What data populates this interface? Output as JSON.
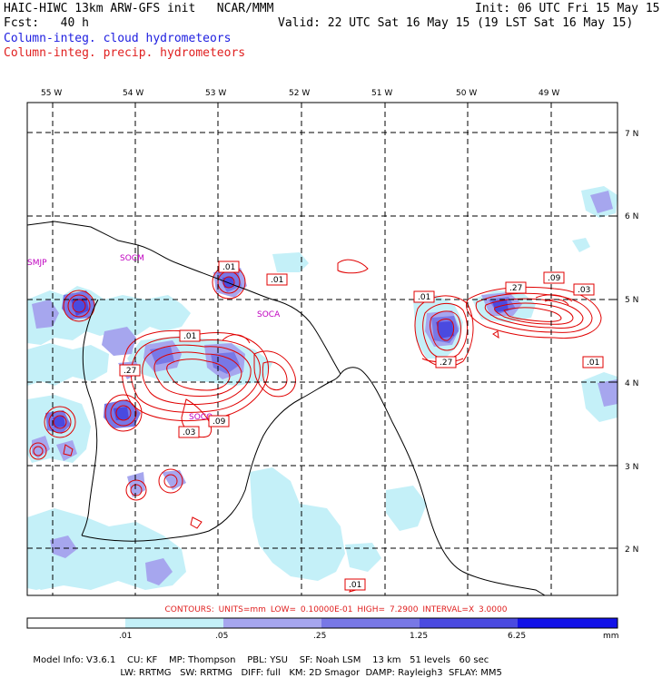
{
  "header": {
    "title_left": "HAIC-HIWC 13km ARW-GFS init   NCAR/MMM",
    "init": "Init: 06 UTC Fri 15 May 15",
    "fcst": "Fcst:   40 h",
    "valid": "Valid: 22 UTC Sat 16 May 15 (19 LST Sat 16 May 15)",
    "field_cloud": "Column-integ. cloud hydrometeors",
    "field_precip": "Column-integ. precip. hydrometeors"
  },
  "colors": {
    "cloud_text": "#2020e0",
    "precip_text": "#e02020",
    "contour": "#e00000",
    "scale": [
      "#ffffff",
      "#c4f0f8",
      "#a6a6ee",
      "#7878e6",
      "#4a4ae0",
      "#1212e8"
    ]
  },
  "map": {
    "lon_labels": [
      "55 W",
      "54 W",
      "53 W",
      "52 W",
      "51 W",
      "50 W",
      "49 W"
    ],
    "lat_labels": [
      "7 N",
      "6 N",
      "5 N",
      "4 N",
      "3 N",
      "2 N"
    ],
    "sites": [
      "SMJP",
      "SOCM",
      "SOCA",
      "SOCO"
    ],
    "contour_labels": [
      ".01",
      ".01",
      ".01",
      ".27",
      ".09",
      ".03",
      ".01",
      ".27",
      ".27",
      ".09",
      ".03",
      ".01",
      ".01"
    ]
  },
  "contours_info": {
    "contours": "CONTOURS:",
    "units": "UNITS=mm",
    "low": "LOW= 0.10000E-01",
    "high": "HIGH= 7.2900",
    "interval": "INTERVAL=X  3.0000"
  },
  "colorbar": {
    "tick_labels": [
      ".01",
      ".05",
      ".25",
      "1.25",
      "6.25"
    ],
    "unit": "mm"
  },
  "footer": {
    "line1": [
      "Model Info: V3.6.1",
      "CU: KF",
      "MP: Thompson",
      "PBL: YSU",
      "SF: Noah LSM",
      "13 km",
      "51 levels",
      "60 sec"
    ],
    "line2": [
      "LW: RRTMG",
      "SW: RRTMG",
      "DIFF: full",
      "KM: 2D Smagor",
      "DAMP: Rayleigh3",
      "SFLAY: MM5"
    ]
  }
}
